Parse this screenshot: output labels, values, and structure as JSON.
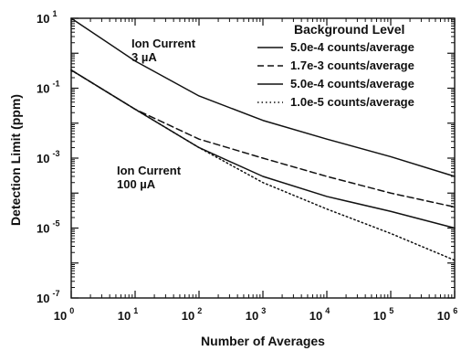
{
  "chart_data": {
    "type": "line",
    "title": "",
    "xlabel": "Number of Averages",
    "ylabel": "Detection Limit (ppm)",
    "xscale": "log",
    "yscale": "log",
    "xlim": [
      1,
      1000000
    ],
    "ylim": [
      1e-07,
      10
    ],
    "grid": false,
    "legend_title": "Background Level",
    "legend_position": "top-right",
    "x_ticks": [
      {
        "base": "10",
        "exp": "0"
      },
      {
        "base": "10",
        "exp": "1"
      },
      {
        "base": "10",
        "exp": "2"
      },
      {
        "base": "10",
        "exp": "3"
      },
      {
        "base": "10",
        "exp": "4"
      },
      {
        "base": "10",
        "exp": "5"
      },
      {
        "base": "10",
        "exp": "6"
      }
    ],
    "y_ticks": [
      {
        "base": "10",
        "exp": "1"
      },
      {
        "base": "10",
        "exp": "-1"
      },
      {
        "base": "10",
        "exp": "-3"
      },
      {
        "base": "10",
        "exp": "-5"
      },
      {
        "base": "10",
        "exp": "-7"
      }
    ],
    "annotations": [
      {
        "lines": [
          "Ion Current",
          "3 µA"
        ]
      },
      {
        "lines": [
          "Ion Current",
          "100 µA"
        ]
      }
    ],
    "series": [
      {
        "name": "5.0e-4 counts/average",
        "style": "solid",
        "x": [
          1,
          10,
          100,
          1000,
          10000,
          100000,
          1000000
        ],
        "y": [
          10,
          0.6,
          0.06,
          0.012,
          0.0035,
          0.0011,
          0.0003
        ]
      },
      {
        "name": "1.7e-3 counts/average",
        "style": "dashed",
        "x": [
          1,
          10,
          100,
          1000,
          10000,
          100000,
          1000000
        ],
        "y": [
          0.33,
          0.025,
          0.0035,
          0.001,
          0.0003,
          0.0001,
          4e-05
        ]
      },
      {
        "name": "5.0e-4 counts/average",
        "style": "solid",
        "x": [
          1,
          10,
          100,
          1000,
          10000,
          100000,
          1000000
        ],
        "y": [
          0.33,
          0.025,
          0.002,
          0.0003,
          8e-05,
          3e-05,
          1e-05
        ]
      },
      {
        "name": "1.0e-5 counts/average",
        "style": "dotted",
        "x": [
          1,
          10,
          100,
          1000,
          10000,
          100000,
          1000000
        ],
        "y": [
          0.33,
          0.025,
          0.002,
          0.0002,
          3.5e-05,
          7e-06,
          1.2e-06
        ]
      }
    ]
  }
}
